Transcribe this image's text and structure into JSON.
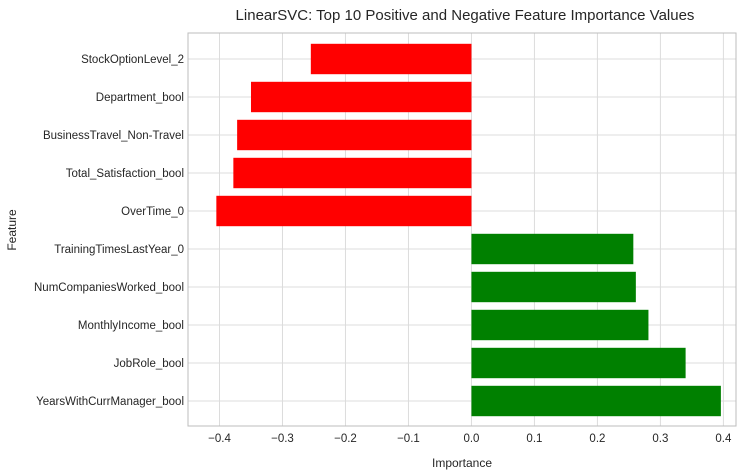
{
  "chart_data": {
    "type": "bar",
    "orientation": "horizontal",
    "title": "LinearSVC: Top 10 Positive and Negative Feature Importance Values",
    "xlabel": "Importance",
    "ylabel": "Feature",
    "xlim": [
      -0.45,
      0.42
    ],
    "xticks": [
      -0.4,
      -0.3,
      -0.2,
      -0.1,
      0.0,
      0.1,
      0.2,
      0.3,
      0.4
    ],
    "xtick_labels": [
      "−0.4",
      "−0.3",
      "−0.2",
      "−0.1",
      "0.0",
      "0.1",
      "0.2",
      "0.3",
      "0.4"
    ],
    "grid": true,
    "categories": [
      "StockOptionLevel_2",
      "Department_bool",
      "BusinessTravel_Non-Travel",
      "Total_Satisfaction_bool",
      "OverTime_0",
      "TrainingTimesLastYear_0",
      "NumCompaniesWorked_bool",
      "MonthlyIncome_bool",
      "JobRole_bool",
      "YearsWithCurrManager_bool"
    ],
    "values": [
      -0.255,
      -0.35,
      -0.372,
      -0.378,
      -0.405,
      0.257,
      0.261,
      0.281,
      0.34,
      0.396
    ],
    "colors": {
      "negative": "#ff0000",
      "positive": "#008000"
    }
  }
}
